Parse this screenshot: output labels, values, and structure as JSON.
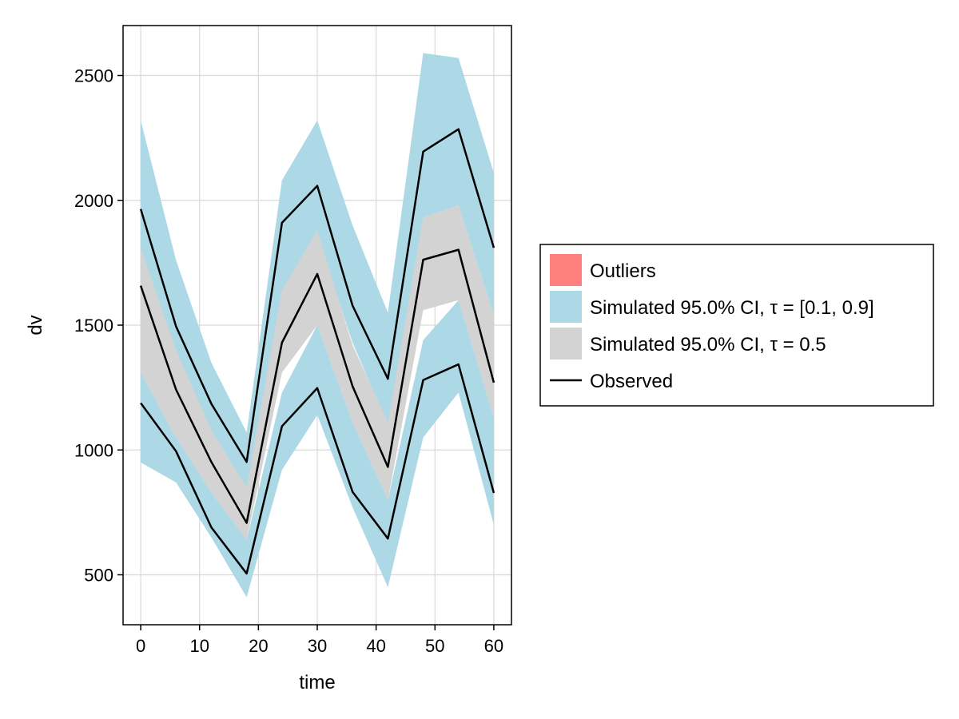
{
  "chart_data": {
    "type": "area",
    "xlabel": "time",
    "ylabel": "dv",
    "xlim": [
      -3,
      63
    ],
    "ylim": [
      300,
      2700
    ],
    "xticks": [
      0,
      10,
      20,
      30,
      40,
      50,
      60
    ],
    "yticks": [
      500,
      1000,
      1500,
      2000,
      2500
    ],
    "grid": true,
    "legend": {
      "placement": "right",
      "entries": [
        {
          "label": "Outliers",
          "kind": "patch",
          "color": "#ff7f7f"
        },
        {
          "label": "Simulated 95.0% CI, τ = [0.1, 0.9]",
          "kind": "patch",
          "color": "#add8e6"
        },
        {
          "label": "Simulated 95.0% CI, τ = 0.5",
          "kind": "patch",
          "color": "#d3d3d3"
        },
        {
          "label": "Observed",
          "kind": "line",
          "color": "#000000"
        }
      ]
    },
    "x": [
      0,
      6,
      12,
      18,
      24,
      30,
      36,
      42,
      48,
      54,
      60
    ],
    "bands": [
      {
        "name": "Simulated 95.0% CI, τ = 0.9",
        "color": "#add8e6",
        "lower": [
          1620,
          1320,
          1060,
          780,
          1630,
          1860,
          1430,
          1100,
          1930,
          1980,
          1540
        ],
        "upper": [
          2320,
          1760,
          1350,
          1070,
          2080,
          2320,
          1900,
          1550,
          2590,
          2570,
          2110
        ]
      },
      {
        "name": "Simulated 95.0% CI, τ = 0.5",
        "color": "#d3d3d3",
        "lower": [
          1310,
          1050,
          830,
          640,
          1310,
          1500,
          1110,
          800,
          1560,
          1600,
          1130
        ],
        "upper": [
          1810,
          1400,
          1080,
          850,
          1640,
          1880,
          1420,
          1110,
          1930,
          1980,
          1540
        ]
      },
      {
        "name": "Simulated 95.0% CI, τ = 0.1",
        "color": "#add8e6",
        "lower": [
          950,
          870,
          650,
          410,
          920,
          1140,
          770,
          450,
          1050,
          1230,
          700
        ],
        "upper": [
          1310,
          1050,
          830,
          640,
          1230,
          1500,
          1110,
          800,
          1440,
          1600,
          1130
        ]
      }
    ],
    "series": [
      {
        "name": "Observed",
        "color": "#000000",
        "values": [
          1965,
          1495,
          1185,
          952,
          1910,
          2058,
          1578,
          1285,
          2195,
          2285,
          1810
        ]
      },
      {
        "name": "Observed",
        "color": "#000000",
        "values": [
          1658,
          1242,
          952,
          708,
          1430,
          1705,
          1255,
          932,
          1762,
          1802,
          1270
        ]
      },
      {
        "name": "Observed",
        "color": "#000000",
        "values": [
          1188,
          995,
          690,
          505,
          1095,
          1248,
          832,
          645,
          1280,
          1343,
          828
        ]
      }
    ]
  }
}
